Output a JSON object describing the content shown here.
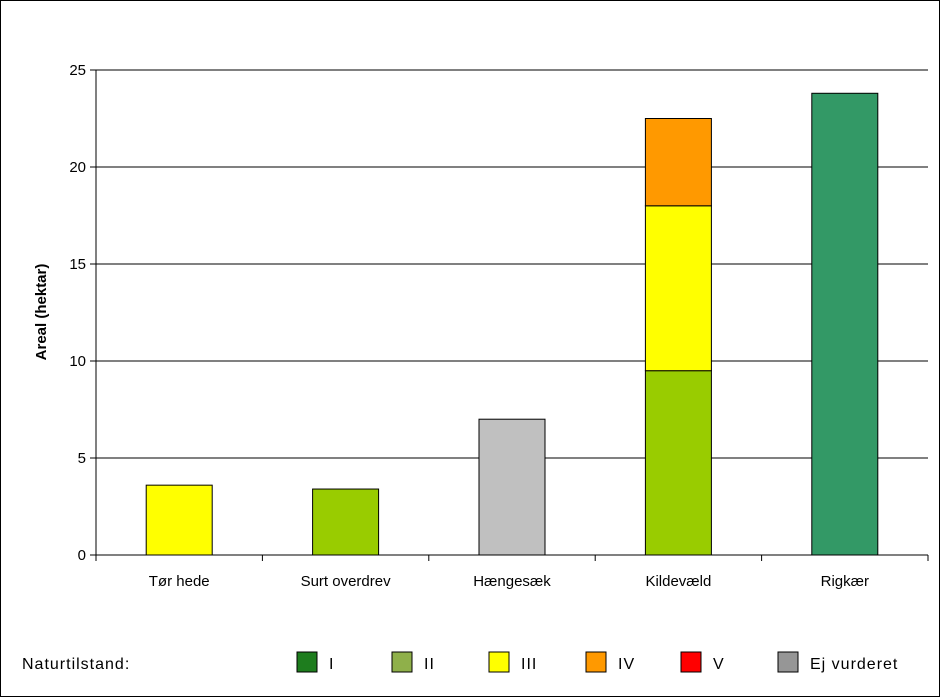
{
  "chart_data": {
    "type": "bar",
    "stacked": true,
    "ylabel": "Areal (hektar)",
    "ylim": [
      0,
      25
    ],
    "yticks": [
      0,
      5,
      10,
      15,
      20,
      25
    ],
    "grid": true,
    "categories": [
      "Tør hede",
      "Surt overdrev",
      "Hængesæk",
      "Kildevæld",
      "Rigkær"
    ],
    "series": [
      {
        "name": "I",
        "color": "#1e7d1e",
        "bar_color": "#339966",
        "values": [
          0,
          0,
          0,
          0,
          23.8
        ]
      },
      {
        "name": "II",
        "color": "#8fb04a",
        "bar_color": "#99cc00",
        "values": [
          0,
          3.4,
          0,
          9.5,
          0
        ]
      },
      {
        "name": "III",
        "color": "#ffff00",
        "bar_color": "#ffff00",
        "values": [
          3.6,
          0,
          0,
          8.5,
          0
        ]
      },
      {
        "name": "IV",
        "color": "#ff9900",
        "bar_color": "#ff9900",
        "values": [
          0,
          0,
          0,
          4.5,
          0
        ]
      },
      {
        "name": "V",
        "color": "#ff0000",
        "bar_color": "#ff0000",
        "values": [
          0,
          0,
          0,
          0,
          0
        ]
      },
      {
        "name": "Ej vurderet",
        "color": "#969696",
        "bar_color": "#c0c0c0",
        "values": [
          0,
          0,
          7.0,
          0,
          0
        ]
      }
    ],
    "legend": {
      "title": "Naturtilstand:",
      "placement": "bottom"
    }
  }
}
